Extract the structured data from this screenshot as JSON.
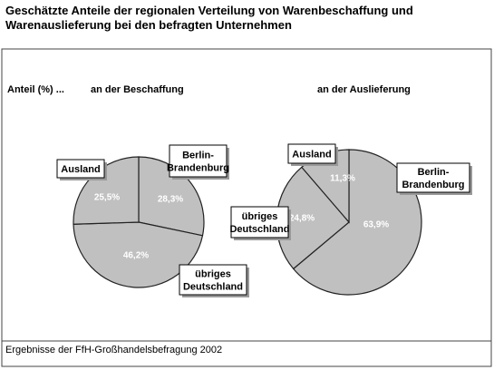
{
  "title": "Geschätzte Anteile der regionalen Verteilung von Warenbeschaffung und\nWarenauslieferung bei den befragten Unternehmen",
  "axis_label": "Anteil (%) ...",
  "footer": "Ergebnisse der FfH-Großhandelsbefragung 2002",
  "chart_data": [
    {
      "type": "pie",
      "title": "an der Beschaffung",
      "categories": [
        "Berlin-\nBrandenburg",
        "übriges\nDeutschland",
        "Ausland"
      ],
      "values": [
        28.3,
        46.2,
        25.5
      ],
      "value_labels": [
        "28,3%",
        "46,2%",
        "25,5%"
      ],
      "color": "#c0c0c0"
    },
    {
      "type": "pie",
      "title": "an der Auslieferung",
      "categories": [
        "Berlin-\nBrandenburg",
        "übriges\nDeutschland",
        "Ausland"
      ],
      "values": [
        63.9,
        24.8,
        11.3
      ],
      "value_labels": [
        "63,9%",
        "24,8%",
        "11,3%"
      ],
      "color": "#c0c0c0"
    }
  ]
}
